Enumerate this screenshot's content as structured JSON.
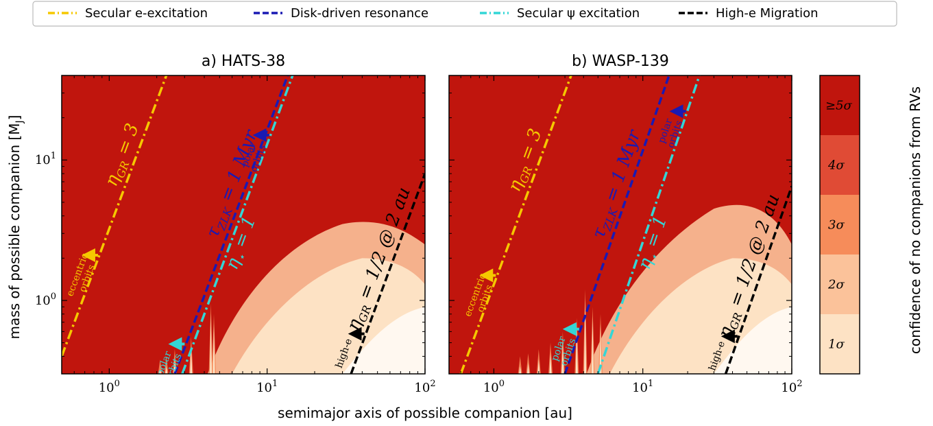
{
  "chart_data": {
    "type": "heatmap",
    "xlabel": "semimajor axis of possible companion [au]",
    "ylabel": "mass of possible companion [M",
    "ylabel_sub": "J",
    "ylabel_end": "]",
    "x_scale": "log",
    "y_scale": "log",
    "xlim": [
      0.5,
      100
    ],
    "ylim": [
      0.3,
      40
    ],
    "x_ticks": [
      {
        "value": 1,
        "label": "10",
        "exp": "0"
      },
      {
        "value": 10,
        "label": "10",
        "exp": "1"
      },
      {
        "value": 100,
        "label": "10",
        "exp": "2"
      }
    ],
    "y_ticks": [
      {
        "value": 1,
        "label": "10",
        "exp": "0"
      },
      {
        "value": 10,
        "label": "10",
        "exp": "1"
      }
    ],
    "legend": {
      "placement": "top",
      "items": [
        {
          "label": "Secular e-excitation",
          "color": "#f5c800",
          "style": "dash-dot"
        },
        {
          "label": "Disk-driven resonance",
          "color": "#1a1ab3",
          "style": "dashed"
        },
        {
          "label": "Secular ψ excitation",
          "color": "#33d6d6",
          "style": "dash-dot"
        },
        {
          "label": "High-e Migration",
          "color": "#000000",
          "style": "dashed"
        }
      ]
    },
    "colorbar": {
      "label": "confidence of no companions from RVs",
      "levels": [
        {
          "label": "1σ",
          "color": "#fde2c4"
        },
        {
          "label": "2σ",
          "color": "#fbc29a"
        },
        {
          "label": "3σ",
          "color": "#f68c5a"
        },
        {
          "label": "4σ",
          "color": "#e04b35"
        },
        {
          "label": "≥5σ",
          "color": "#c0150d"
        }
      ]
    },
    "panels": [
      {
        "title": "a) HATS-38",
        "lines": [
          {
            "name": "Secular e-excitation",
            "label": "η",
            "label_sub": "GR",
            "label_end": " = 3",
            "color": "#f5c800",
            "points": [
              [
                0.5,
                0.4
              ],
              [
                2.3,
                40
              ]
            ]
          },
          {
            "name": "Disk-driven resonance",
            "label": "τ",
            "label_sub": "ZLK",
            "label_end": " = 1 Myr",
            "color": "#1a1ab3",
            "points": [
              [
                2.6,
                0.3
              ],
              [
                13.5,
                40
              ]
            ]
          },
          {
            "name": "Secular ψ excitation",
            "label": "η",
            "label_sub": "⋆",
            "label_end": " = 1",
            "color": "#33d6d6",
            "points": [
              [
                2.9,
                0.3
              ],
              [
                14.5,
                40
              ]
            ]
          },
          {
            "name": "High-e Migration",
            "label": "η",
            "label_sub": "GR",
            "label_end": " = 1/2 @ 2 au",
            "color": "#000000",
            "points": [
              [
                34,
                0.3
              ],
              [
                100,
                8
              ]
            ]
          }
        ],
        "annotations": [
          {
            "text": [
              "eccentric",
              "orbits"
            ],
            "color": "#f5c800"
          },
          {
            "text": [
              "polar",
              "orbits"
            ],
            "color": "#33d6d6"
          },
          {
            "text": [
              "polar",
              "orbits"
            ],
            "color": "#1a1ab3"
          },
          {
            "text": [
              "high-e"
            ],
            "color": "#000000"
          }
        ]
      },
      {
        "title": "b) WASP-139",
        "lines": [
          {
            "name": "Secular e-excitation",
            "label": "η",
            "label_sub": "GR",
            "label_end": " = 3",
            "color": "#f5c800",
            "points": [
              [
                0.6,
                0.3
              ],
              [
                3.3,
                40
              ]
            ]
          },
          {
            "name": "Disk-driven resonance",
            "label": "τ",
            "label_sub": "ZLK",
            "label_end": " = 1 Myr",
            "color": "#1a1ab3",
            "points": [
              [
                3.0,
                0.3
              ],
              [
                15,
                40
              ]
            ]
          },
          {
            "name": "Secular ψ excitation",
            "label": "η",
            "label_sub": "⋆",
            "label_end": " = 1",
            "color": "#33d6d6",
            "points": [
              [
                5.0,
                0.3
              ],
              [
                24,
                40
              ]
            ]
          },
          {
            "name": "High-e Migration",
            "label": "η",
            "label_sub": "GR",
            "label_end": " = 1/2 @ 2 au",
            "color": "#000000",
            "points": [
              [
                36,
                0.3
              ],
              [
                100,
                6.5
              ]
            ]
          }
        ],
        "annotations": [
          {
            "text": [
              "eccentric",
              "orbits"
            ],
            "color": "#f5c800"
          },
          {
            "text": [
              "polar",
              "orbits"
            ],
            "color": "#33d6d6"
          },
          {
            "text": [
              "polar",
              "orbits"
            ],
            "color": "#1a1ab3"
          },
          {
            "text": [
              "high-e"
            ],
            "color": "#000000"
          }
        ]
      }
    ]
  }
}
